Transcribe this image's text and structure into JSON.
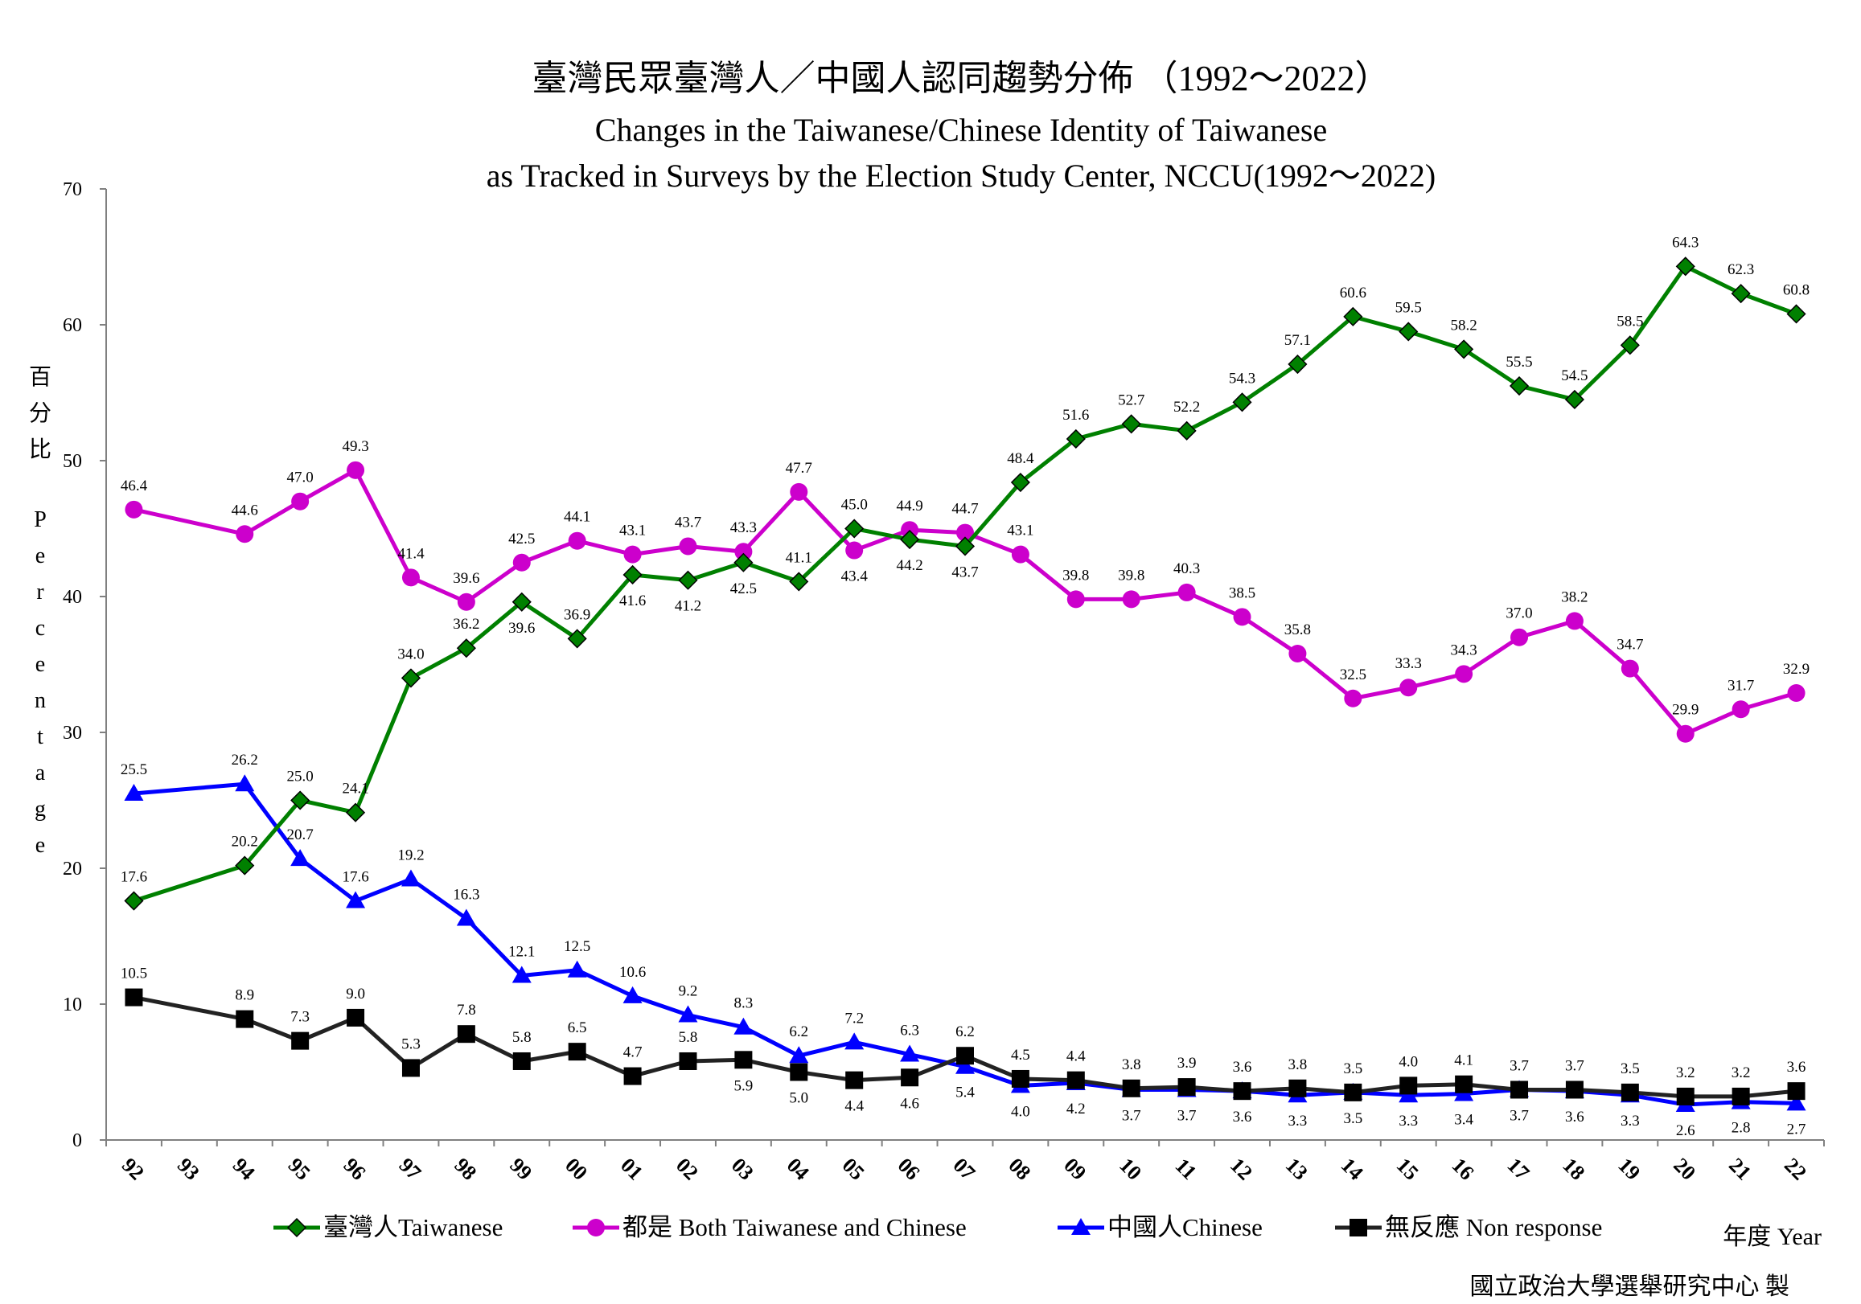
{
  "chart_data": {
    "type": "line",
    "title": "臺灣民眾臺灣人／中國人認同趨勢分佈 （1992～2022）",
    "subtitle_line1": "Changes in the Taiwanese/Chinese Identity of Taiwanese",
    "subtitle_line2": "as Tracked in Surveys by the Election Study Center, NCCU(1992～2022)",
    "ylabel_chars": [
      "百",
      "分",
      "比",
      "P",
      "e",
      "r",
      "c",
      "e",
      "n",
      "t",
      "a",
      "g",
      "e"
    ],
    "xlabel": "年度 Year",
    "source": "國立政治大學選舉研究中心 製",
    "ylim": [
      0,
      70
    ],
    "yticks": [
      "0",
      "10",
      "20",
      "30",
      "40",
      "50",
      "60",
      "70"
    ],
    "xticks": [
      "92",
      "93",
      "94",
      "95",
      "96",
      "97",
      "98",
      "99",
      "00",
      "01",
      "02",
      "03",
      "04",
      "05",
      "06",
      "07",
      "08",
      "09",
      "10",
      "11",
      "12",
      "13",
      "14",
      "15",
      "16",
      "17",
      "18",
      "19",
      "20",
      "21",
      "22"
    ],
    "x": [
      0,
      2,
      3,
      4,
      5,
      6,
      7,
      8,
      9,
      10,
      11,
      12,
      13,
      14,
      15,
      16,
      17,
      18,
      19,
      20,
      21,
      22,
      23,
      24,
      25,
      26,
      27,
      28,
      29,
      30
    ],
    "series": [
      {
        "name": "臺灣人Taiwanese",
        "color": "#008000",
        "marker": "diamond",
        "values": [
          17.6,
          20.2,
          25.0,
          24.1,
          34.0,
          36.2,
          39.6,
          36.9,
          41.6,
          41.2,
          42.5,
          41.1,
          45.0,
          44.2,
          43.7,
          48.4,
          51.6,
          52.7,
          52.2,
          54.3,
          57.1,
          60.6,
          59.5,
          58.2,
          55.5,
          54.5,
          58.5,
          64.3,
          62.3,
          60.8
        ],
        "labels": [
          "17.6",
          "20.2",
          "25.0",
          "24.1",
          "34.0",
          "36.2",
          "39.6",
          "36.9",
          "41.6",
          "41.2",
          "42.5",
          "41.1",
          "45.0",
          "44.2",
          "43.7",
          "48.4",
          "51.6",
          "52.7",
          "52.2",
          "54.3",
          "57.1",
          "60.6",
          "59.5",
          "58.2",
          "55.5",
          "54.5",
          "58.5",
          "64.3",
          "62.3",
          "60.8"
        ],
        "label_pos": [
          "above",
          "above",
          "above",
          "above",
          "above",
          "above",
          "below",
          "above",
          "below",
          "below",
          "below",
          "above",
          "above",
          "below",
          "below",
          "above",
          "above",
          "above",
          "above",
          "above",
          "above",
          "above",
          "above",
          "above",
          "above",
          "above",
          "above",
          "above",
          "above",
          "above"
        ]
      },
      {
        "name": "都是 Both Taiwanese and Chinese",
        "color": "#cc00cc",
        "marker": "circle",
        "values": [
          46.4,
          44.6,
          47.0,
          49.3,
          41.4,
          39.6,
          42.5,
          44.1,
          43.1,
          43.7,
          43.3,
          47.7,
          43.4,
          44.9,
          44.7,
          43.1,
          39.8,
          39.8,
          40.3,
          38.5,
          35.8,
          32.5,
          33.3,
          34.3,
          37.0,
          38.2,
          34.7,
          29.9,
          31.7,
          32.9
        ],
        "labels": [
          "46.4",
          "44.6",
          "47.0",
          "49.3",
          "41.4",
          "39.6",
          "42.5",
          "44.1",
          "43.1",
          "43.7",
          "43.3",
          "47.7",
          "43.4",
          "44.9",
          "44.7",
          "43.1",
          "39.8",
          "39.8",
          "40.3",
          "38.5",
          "35.8",
          "32.5",
          "33.3",
          "34.3",
          "37.0",
          "38.2",
          "34.7",
          "29.9",
          "31.7",
          "32.9"
        ],
        "label_pos": [
          "above",
          "above",
          "above",
          "above",
          "above",
          "above",
          "above",
          "above",
          "above",
          "above",
          "above",
          "above",
          "below",
          "above",
          "above",
          "above",
          "above",
          "above",
          "above",
          "above",
          "above",
          "above",
          "above",
          "above",
          "above",
          "above",
          "above",
          "above",
          "above",
          "above"
        ]
      },
      {
        "name": "中國人Chinese",
        "color": "#0000ff",
        "marker": "triangle",
        "values": [
          25.5,
          26.2,
          20.7,
          17.6,
          19.2,
          16.3,
          12.1,
          12.5,
          10.6,
          9.2,
          8.3,
          6.2,
          7.2,
          6.3,
          5.4,
          4.0,
          4.2,
          3.7,
          3.7,
          3.6,
          3.3,
          3.5,
          3.3,
          3.4,
          3.7,
          3.6,
          3.3,
          2.6,
          2.8,
          2.7
        ],
        "labels": [
          "25.5",
          "26.2",
          "20.7",
          "17.6",
          "19.2",
          "16.3",
          "12.1",
          "12.5",
          "10.6",
          "9.2",
          "8.3",
          "6.2",
          "7.2",
          "6.3",
          "5.4",
          "4.0",
          "4.2",
          "3.7",
          "3.7",
          "3.6",
          "3.3",
          "3.5",
          "3.3",
          "3.4",
          "3.7",
          "3.6",
          "3.3",
          "2.6",
          "2.8",
          "2.7"
        ],
        "label_pos": [
          "above",
          "above",
          "above",
          "above",
          "above",
          "above",
          "above",
          "above",
          "above",
          "above",
          "above",
          "above",
          "above",
          "above",
          "below",
          "below",
          "below",
          "below",
          "below",
          "below",
          "below",
          "below",
          "below",
          "below",
          "below",
          "below",
          "below",
          "below",
          "below",
          "below"
        ]
      },
      {
        "name": "無反應 Non response",
        "color": "#222222",
        "marker": "square",
        "values": [
          10.5,
          8.9,
          7.3,
          9.0,
          5.3,
          7.8,
          5.8,
          6.5,
          4.7,
          5.8,
          5.9,
          5.0,
          4.4,
          4.6,
          6.2,
          4.5,
          4.4,
          3.8,
          3.9,
          3.6,
          3.8,
          3.5,
          4.0,
          4.1,
          3.7,
          3.7,
          3.5,
          3.2,
          3.2,
          3.6
        ],
        "labels": [
          "10.5",
          "8.9",
          "7.3",
          "9.0",
          "5.3",
          "7.8",
          "5.8",
          "6.5",
          "4.7",
          "5.8",
          "5.9",
          "5.0",
          "4.4",
          "4.6",
          "6.2",
          "4.5",
          "4.4",
          "3.8",
          "3.9",
          "3.6",
          "3.8",
          "3.5",
          "4.0",
          "4.1",
          "3.7",
          "3.7",
          "3.5",
          "3.2",
          "3.2",
          "3.6"
        ],
        "label_pos": [
          "above",
          "above",
          "above",
          "above",
          "above",
          "above",
          "above",
          "above",
          "above",
          "above",
          "below",
          "below",
          "below",
          "below",
          "above",
          "above",
          "above",
          "above",
          "above",
          "above",
          "above",
          "above",
          "above",
          "above",
          "above",
          "above",
          "above",
          "above",
          "above",
          "above"
        ]
      }
    ],
    "legend_position": "bottom",
    "grid": false
  }
}
